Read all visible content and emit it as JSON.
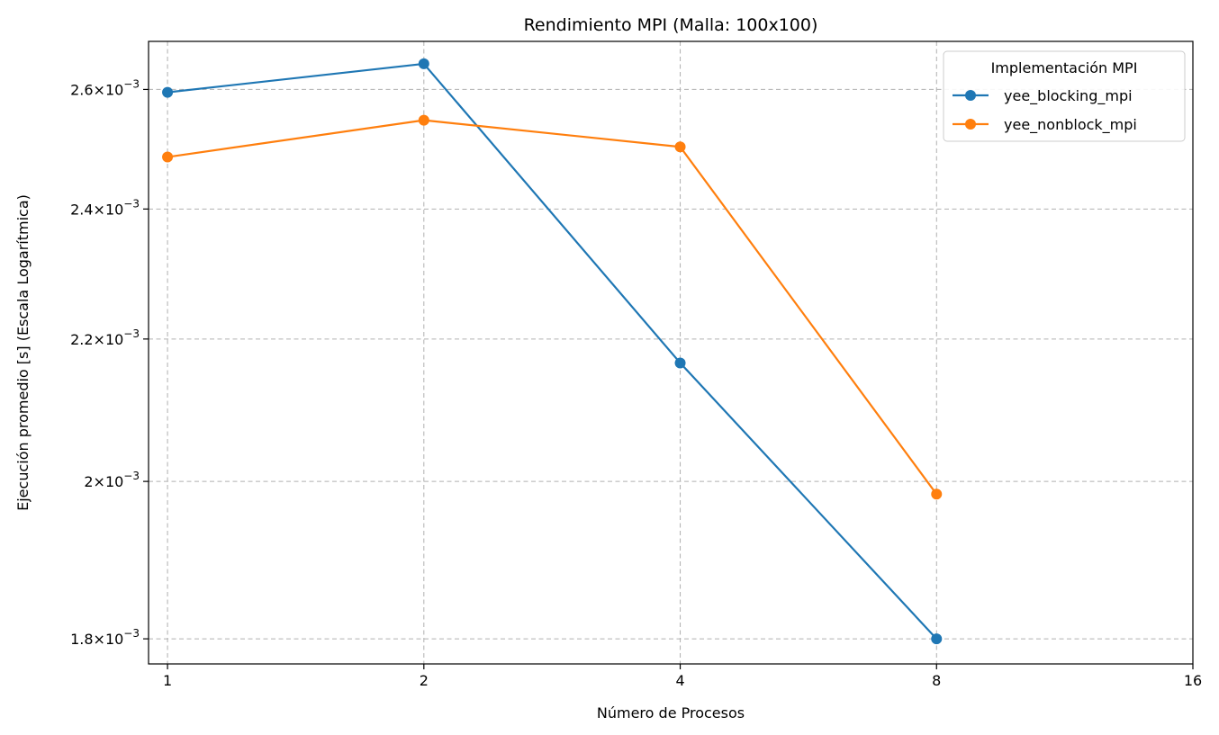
{
  "chart_data": {
    "type": "line",
    "title": "Rendimiento MPI (Malla: 100x100)",
    "xlabel": "Número de Procesos",
    "ylabel": "Ejecución promedio [s] (Escala Logarítmica)",
    "x_scale": "log2",
    "y_scale": "log",
    "xlim": [
      0.95,
      16
    ],
    "ylim": [
      0.00177,
      0.002685
    ],
    "x_ticks": [
      1,
      2,
      4,
      8,
      16
    ],
    "x_tick_labels": [
      "1",
      "2",
      "4",
      "8",
      "16"
    ],
    "y_ticks": [
      0.0018,
      0.002,
      0.0022,
      0.0024,
      0.0026
    ],
    "y_tick_mantissas": [
      "1.8",
      "2",
      "2.2",
      "2.4",
      "2.6"
    ],
    "y_tick_base": "10",
    "y_tick_exponent": "−3",
    "grid": true,
    "legend_placement": "top-right",
    "legend_title": "Implementación MPI",
    "x": [
      1,
      2,
      4,
      8
    ],
    "series": [
      {
        "name": "yee_blocking_mpi",
        "color": "#1f77b4",
        "values": [
          0.002595,
          0.002645,
          0.002165,
          0.0018
        ]
      },
      {
        "name": "yee_nonblock_mpi",
        "color": "#ff7f0e",
        "values": [
          0.002485,
          0.002547,
          0.002502,
          0.001983
        ]
      }
    ]
  }
}
